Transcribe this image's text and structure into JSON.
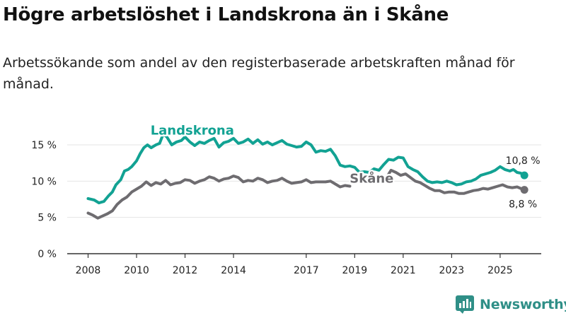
{
  "title": "Högre arbetslöshet i Landskrona än i Skåne",
  "subtitle": "Arbetssökande som andel av den registerbaserade arbetskraften månad för månad.",
  "brand": "Newsworthy",
  "colors": {
    "landskrona": "#12a293",
    "skane": "#6e6c70",
    "grid": "#e4e4e4",
    "axis": "#333333",
    "brand": "#2f8f87"
  },
  "chart_data": {
    "type": "line",
    "title": "Högre arbetslöshet i Landskrona än i Skåne",
    "xlabel": "",
    "ylabel": "",
    "xlim": [
      2008,
      2026.2
    ],
    "ylim": [
      0,
      15
    ],
    "x_ticks": [
      {
        "value": 2008,
        "label": "2008"
      },
      {
        "value": 2010,
        "label": "2010"
      },
      {
        "value": 2012,
        "label": "2012"
      },
      {
        "value": 2014,
        "label": "2014"
      },
      {
        "value": 2017,
        "label": "2017"
      },
      {
        "value": 2019,
        "label": "2019"
      },
      {
        "value": 2021,
        "label": "2021"
      },
      {
        "value": 2023,
        "label": "2023"
      },
      {
        "value": 2025,
        "label": "2025"
      }
    ],
    "y_ticks": [
      {
        "value": 0,
        "label": "0 %"
      },
      {
        "value": 5,
        "label": "5 %"
      },
      {
        "value": 10,
        "label": "10 %"
      },
      {
        "value": 15,
        "label": "15 %"
      }
    ],
    "series": [
      {
        "name": "Landskrona",
        "label_at": [
          2012.3,
          16.4
        ],
        "end_label": "10,8 %",
        "segments": [
          [
            [
              2008.0,
              7.6
            ],
            [
              2008.25,
              7.4
            ],
            [
              2008.45,
              7.0
            ],
            [
              2008.65,
              7.2
            ],
            [
              2008.85,
              8.0
            ],
            [
              2009.0,
              8.5
            ],
            [
              2009.15,
              9.5
            ],
            [
              2009.35,
              10.2
            ],
            [
              2009.5,
              11.4
            ],
            [
              2009.65,
              11.6
            ],
            [
              2009.8,
              12.0
            ],
            [
              2010.0,
              12.8
            ],
            [
              2010.15,
              13.8
            ],
            [
              2010.3,
              14.6
            ],
            [
              2010.45,
              15.0
            ],
            [
              2010.6,
              14.6
            ],
            [
              2010.8,
              15.0
            ],
            [
              2010.95,
              15.2
            ],
            [
              2011.1,
              16.5
            ],
            [
              2011.25,
              16.1
            ],
            [
              2011.45,
              15.0
            ],
            [
              2011.65,
              15.4
            ],
            [
              2011.85,
              15.6
            ],
            [
              2012.0,
              16.1
            ],
            [
              2012.2,
              15.4
            ],
            [
              2012.4,
              14.9
            ],
            [
              2012.6,
              15.4
            ],
            [
              2012.8,
              15.2
            ],
            [
              2013.0,
              15.6
            ],
            [
              2013.2,
              15.9
            ],
            [
              2013.4,
              14.7
            ],
            [
              2013.6,
              15.3
            ],
            [
              2013.8,
              15.5
            ],
            [
              2014.0,
              15.9
            ],
            [
              2014.2,
              15.2
            ],
            [
              2014.4,
              15.4
            ],
            [
              2014.6,
              15.8
            ],
            [
              2014.8,
              15.2
            ],
            [
              2015.0,
              15.7
            ],
            [
              2015.2,
              15.1
            ],
            [
              2015.4,
              15.4
            ],
            [
              2015.6,
              15.0
            ],
            [
              2015.8,
              15.3
            ],
            [
              2016.0,
              15.6
            ],
            [
              2016.2,
              15.1
            ],
            [
              2016.4,
              14.9
            ],
            [
              2016.6,
              14.7
            ],
            [
              2016.8,
              14.8
            ],
            [
              2017.0,
              15.4
            ],
            [
              2017.2,
              15.0
            ],
            [
              2017.4,
              14.0
            ],
            [
              2017.6,
              14.2
            ],
            [
              2017.8,
              14.1
            ],
            [
              2018.0,
              14.4
            ],
            [
              2018.2,
              13.5
            ],
            [
              2018.4,
              12.2
            ],
            [
              2018.6,
              12.0
            ],
            [
              2018.8,
              12.1
            ],
            [
              2019.0,
              11.9
            ],
            [
              2019.2,
              11.2
            ],
            [
              2019.4,
              11.3
            ],
            [
              2019.6,
              11.2
            ],
            [
              2019.8,
              11.7
            ],
            [
              2020.0,
              11.5
            ],
            [
              2020.2,
              12.3
            ],
            [
              2020.4,
              13.0
            ],
            [
              2020.6,
              12.9
            ],
            [
              2020.8,
              13.3
            ],
            [
              2021.0,
              13.2
            ],
            [
              2021.2,
              12.0
            ],
            [
              2021.4,
              11.6
            ],
            [
              2021.6,
              11.3
            ],
            [
              2021.8,
              10.6
            ],
            [
              2022.0,
              10.0
            ],
            [
              2022.2,
              9.8
            ],
            [
              2022.4,
              9.9
            ],
            [
              2022.6,
              9.8
            ],
            [
              2022.8,
              10.0
            ],
            [
              2023.0,
              9.8
            ],
            [
              2023.2,
              9.5
            ],
            [
              2023.4,
              9.6
            ],
            [
              2023.6,
              9.9
            ],
            [
              2023.8,
              10.0
            ],
            [
              2024.0,
              10.3
            ],
            [
              2024.2,
              10.8
            ],
            [
              2024.4,
              11.0
            ],
            [
              2024.6,
              11.2
            ],
            [
              2024.8,
              11.5
            ],
            [
              2025.0,
              12.0
            ],
            [
              2025.2,
              11.6
            ],
            [
              2025.4,
              11.4
            ],
            [
              2025.55,
              11.6
            ],
            [
              2025.7,
              11.2
            ],
            [
              2025.85,
              11.1
            ],
            [
              2026.0,
              10.8
            ]
          ]
        ]
      },
      {
        "name": "Skåne",
        "label_at": [
          2019.7,
          9.8
        ],
        "end_label": "8,8 %",
        "segments": [
          [
            [
              2008.0,
              5.6
            ],
            [
              2008.2,
              5.3
            ],
            [
              2008.4,
              4.9
            ],
            [
              2008.6,
              5.2
            ],
            [
              2008.8,
              5.5
            ],
            [
              2009.0,
              5.9
            ],
            [
              2009.2,
              6.8
            ],
            [
              2009.4,
              7.4
            ],
            [
              2009.6,
              7.8
            ],
            [
              2009.8,
              8.5
            ],
            [
              2010.0,
              8.9
            ],
            [
              2010.2,
              9.3
            ],
            [
              2010.4,
              9.9
            ],
            [
              2010.6,
              9.4
            ],
            [
              2010.8,
              9.8
            ],
            [
              2011.0,
              9.6
            ],
            [
              2011.2,
              10.1
            ],
            [
              2011.4,
              9.5
            ],
            [
              2011.6,
              9.7
            ],
            [
              2011.8,
              9.8
            ],
            [
              2012.0,
              10.2
            ],
            [
              2012.2,
              10.1
            ],
            [
              2012.4,
              9.7
            ],
            [
              2012.6,
              10.0
            ],
            [
              2012.8,
              10.2
            ],
            [
              2013.0,
              10.6
            ],
            [
              2013.2,
              10.4
            ],
            [
              2013.4,
              10.0
            ],
            [
              2013.6,
              10.3
            ],
            [
              2013.8,
              10.4
            ],
            [
              2014.0,
              10.7
            ],
            [
              2014.2,
              10.5
            ],
            [
              2014.4,
              9.9
            ],
            [
              2014.6,
              10.1
            ],
            [
              2014.8,
              10.0
            ],
            [
              2015.0,
              10.4
            ],
            [
              2015.2,
              10.2
            ],
            [
              2015.4,
              9.8
            ],
            [
              2015.6,
              10.0
            ],
            [
              2015.8,
              10.1
            ],
            [
              2016.0,
              10.4
            ],
            [
              2016.2,
              10.0
            ],
            [
              2016.4,
              9.7
            ],
            [
              2016.6,
              9.8
            ],
            [
              2016.8,
              9.9
            ],
            [
              2017.0,
              10.2
            ],
            [
              2017.2,
              9.8
            ],
            [
              2017.4,
              9.9
            ],
            [
              2017.6,
              9.9
            ],
            [
              2017.8,
              9.9
            ],
            [
              2018.0,
              10.0
            ],
            [
              2018.2,
              9.6
            ],
            [
              2018.4,
              9.2
            ],
            [
              2018.6,
              9.4
            ],
            [
              2018.8,
              9.3
            ]
          ],
          [
            [
              2020.3,
              10.4
            ],
            [
              2020.5,
              11.5
            ],
            [
              2020.7,
              11.2
            ],
            [
              2020.9,
              10.8
            ],
            [
              2021.1,
              11.0
            ],
            [
              2021.3,
              10.5
            ],
            [
              2021.5,
              10.0
            ],
            [
              2021.7,
              9.8
            ],
            [
              2021.9,
              9.4
            ],
            [
              2022.1,
              9.0
            ],
            [
              2022.3,
              8.7
            ],
            [
              2022.5,
              8.7
            ],
            [
              2022.7,
              8.4
            ],
            [
              2022.9,
              8.5
            ],
            [
              2023.1,
              8.5
            ],
            [
              2023.3,
              8.3
            ],
            [
              2023.5,
              8.3
            ],
            [
              2023.7,
              8.5
            ],
            [
              2023.9,
              8.7
            ],
            [
              2024.1,
              8.8
            ],
            [
              2024.3,
              9.0
            ],
            [
              2024.5,
              8.9
            ],
            [
              2024.7,
              9.1
            ],
            [
              2024.9,
              9.3
            ],
            [
              2025.1,
              9.5
            ],
            [
              2025.3,
              9.2
            ],
            [
              2025.5,
              9.1
            ],
            [
              2025.7,
              9.2
            ],
            [
              2025.85,
              9.0
            ],
            [
              2026.0,
              8.8
            ]
          ]
        ]
      }
    ]
  }
}
